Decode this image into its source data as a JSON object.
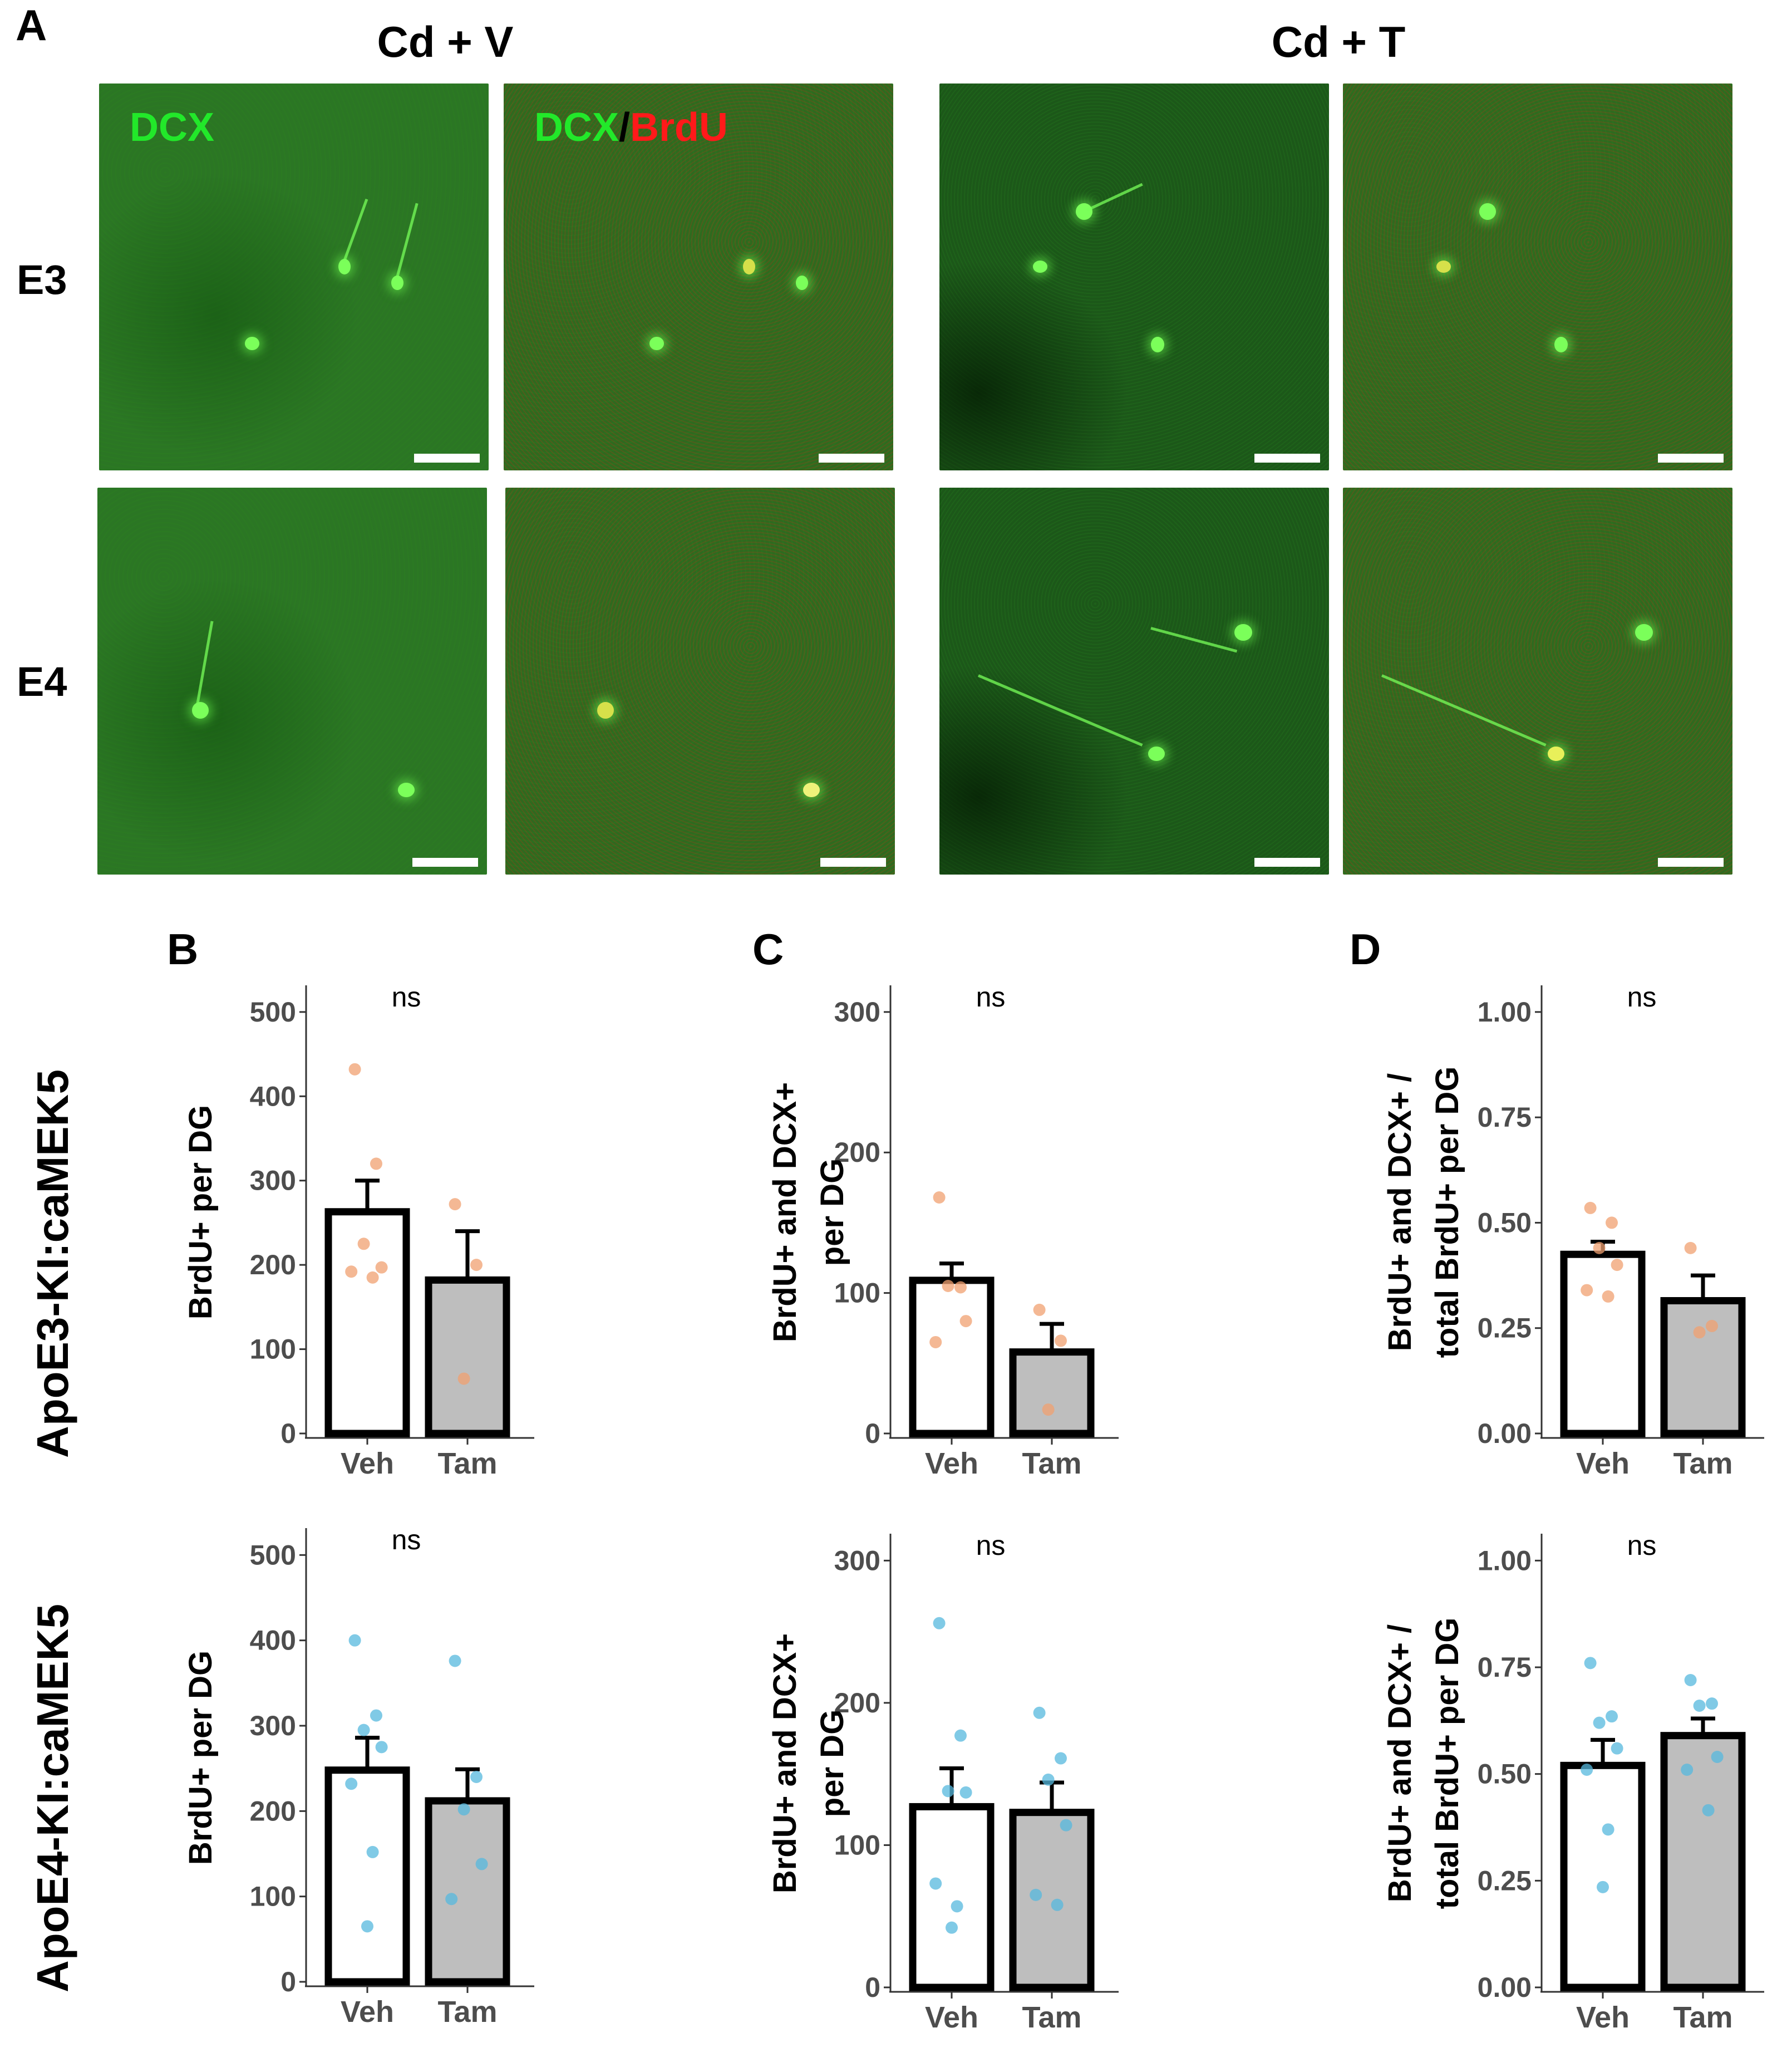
{
  "figure": {
    "panel_A_label": "A",
    "panel_B_label": "B",
    "panel_C_label": "C",
    "panel_D_label": "D",
    "condition_left": "Cd + V",
    "condition_right": "Cd + T",
    "row_E3": "E3",
    "row_E4": "E4",
    "stain_dcx": "DCX",
    "stain_dcx2": "DCX",
    "stain_sep": "/",
    "stain_brdu": "BrdU",
    "genotype_top": "ApoE3-KI:caMEK5",
    "genotype_bottom": "ApoE4-KI:caMEK5",
    "colors": {
      "dcx_green": "#22e82a",
      "brdu_red": "#ff1a1a",
      "e3_points": "#f0a070",
      "e4_points": "#55b8dd",
      "tam_fill": "#bebebe",
      "veh_fill": "#ffffff"
    }
  },
  "chart_data": [
    {
      "id": "B-top",
      "type": "bar",
      "categories": [
        "Veh",
        "Tam"
      ],
      "values": [
        263,
        182
      ],
      "errors": [
        37,
        58
      ],
      "fill": [
        "#ffffff",
        "#bebebe"
      ],
      "points": [
        [
          432,
          320,
          225,
          197,
          192,
          185
        ],
        [
          272,
          200,
          65
        ]
      ],
      "point_color": "#f0a070",
      "ylabel": "BrdU+ per DG",
      "ylim": [
        0,
        525
      ],
      "yticks": [
        0,
        100,
        200,
        300,
        400,
        500
      ],
      "yticklabels": [
        "0",
        "100",
        "200",
        "300",
        "400",
        "500"
      ],
      "annotation": "ns"
    },
    {
      "id": "C-top",
      "type": "bar",
      "categories": [
        "Veh",
        "Tam"
      ],
      "values": [
        109,
        58
      ],
      "errors": [
        12,
        20
      ],
      "fill": [
        "#ffffff",
        "#bebebe"
      ],
      "points": [
        [
          168,
          104,
          105,
          80,
          65
        ],
        [
          88,
          66,
          17
        ]
      ],
      "point_color": "#f0a070",
      "ylabel": "BrdU+ and DCX+ per DG",
      "ylim": [
        0,
        315
      ],
      "yticks": [
        0,
        100,
        200,
        300
      ],
      "yticklabels": [
        "0",
        "100",
        "200",
        "300"
      ],
      "annotation": "ns"
    },
    {
      "id": "D-top",
      "type": "bar",
      "categories": [
        "Veh",
        "Tam"
      ],
      "values": [
        0.425,
        0.315
      ],
      "errors": [
        0.03,
        0.06
      ],
      "fill": [
        "#ffffff",
        "#bebebe"
      ],
      "points": [
        [
          0.535,
          0.5,
          0.44,
          0.4,
          0.34,
          0.325
        ],
        [
          0.44,
          0.255,
          0.24
        ]
      ],
      "point_color": "#f0a070",
      "ylabel": "BrdU+ and DCX+ / total BrdU+ per DG",
      "ylim": [
        0,
        1.05
      ],
      "yticks": [
        0,
        0.25,
        0.5,
        0.75,
        1.0
      ],
      "yticklabels": [
        "0.00",
        "0.25",
        "0.50",
        "0.75",
        "1.00"
      ],
      "annotation": "ns"
    },
    {
      "id": "B-bottom",
      "type": "bar",
      "categories": [
        "Veh",
        "Tam"
      ],
      "values": [
        248,
        212
      ],
      "errors": [
        38,
        37
      ],
      "fill": [
        "#ffffff",
        "#bebebe"
      ],
      "points": [
        [
          400,
          312,
          295,
          275,
          232,
          152,
          65
        ],
        [
          376,
          240,
          202,
          138,
          97
        ]
      ],
      "point_color": "#55b8dd",
      "ylabel": "BrdU+ per DG",
      "ylim": [
        0,
        525
      ],
      "yticks": [
        0,
        100,
        200,
        300,
        400,
        500
      ],
      "yticklabels": [
        "0",
        "100",
        "200",
        "300",
        "400",
        "500"
      ],
      "annotation": "ns"
    },
    {
      "id": "C-bottom",
      "type": "bar",
      "categories": [
        "Veh",
        "Tam"
      ],
      "values": [
        127,
        123
      ],
      "errors": [
        27,
        21
      ],
      "fill": [
        "#ffffff",
        "#bebebe"
      ],
      "points": [
        [
          256,
          177,
          138,
          137,
          73,
          57,
          42
        ],
        [
          193,
          161,
          146,
          114,
          65,
          58
        ]
      ],
      "point_color": "#55b8dd",
      "ylabel": "BrdU+ and DCX+ per DG",
      "ylim": [
        0,
        315
      ],
      "yticks": [
        0,
        100,
        200,
        300
      ],
      "yticklabels": [
        "0",
        "100",
        "200",
        "300"
      ],
      "annotation": "ns"
    },
    {
      "id": "D-bottom",
      "type": "bar",
      "categories": [
        "Veh",
        "Tam"
      ],
      "values": [
        0.52,
        0.59
      ],
      "errors": [
        0.06,
        0.04
      ],
      "fill": [
        "#ffffff",
        "#bebebe"
      ],
      "points": [
        [
          0.76,
          0.635,
          0.62,
          0.56,
          0.51,
          0.37,
          0.235
        ],
        [
          0.72,
          0.665,
          0.66,
          0.54,
          0.51,
          0.415
        ]
      ],
      "point_color": "#55b8dd",
      "ylabel": "BrdU+ and DCX+ / total BrdU+ per DG",
      "ylim": [
        0,
        1.05
      ],
      "yticks": [
        0,
        0.25,
        0.5,
        0.75,
        1.0
      ],
      "yticklabels": [
        "0.00",
        "0.25",
        "0.50",
        "0.75",
        "1.00"
      ],
      "annotation": "ns"
    }
  ]
}
